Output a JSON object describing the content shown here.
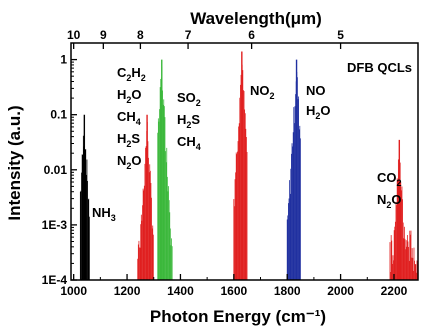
{
  "chart_data": {
    "type": "line",
    "title": "",
    "xlabel": "Photon Energy (cm⁻¹)",
    "ylabel": "Intensity (a.u.)",
    "top_axis_label": "Wavelength(μm)",
    "xlim": [
      990,
      2290
    ],
    "ylim": [
      0.0001,
      2
    ],
    "y_scale": "log",
    "grid": false,
    "x_ticks": [
      1000,
      1200,
      1400,
      1600,
      1800,
      2000,
      2200
    ],
    "x_tick_labels": [
      "1000",
      "1200",
      "1400",
      "1600",
      "1800",
      "2000",
      "2200"
    ],
    "y_ticks": [
      0.0001,
      0.001,
      0.01,
      0.1,
      1
    ],
    "y_tick_labels": [
      "1E-4",
      "1E-3",
      "0.01",
      "0.1",
      "1"
    ],
    "top_ticks_um": [
      10,
      9,
      8,
      7,
      6,
      5
    ],
    "top_tick_labels": [
      "10",
      "9",
      "8",
      "7",
      "6",
      "5"
    ],
    "corner_label": "DFB QCLs",
    "series": [
      {
        "color": "#000000",
        "peak_x": 1040,
        "peak_y": 0.1,
        "x_range": [
          1025,
          1060
        ]
      },
      {
        "color": "#e02020",
        "peak_x": 1275,
        "peak_y": 0.1,
        "x_range": [
          1240,
          1300
        ]
      },
      {
        "color": "#3cb83c",
        "peak_x": 1330,
        "peak_y": 1.0,
        "x_range": [
          1315,
          1370
        ]
      },
      {
        "color": "#e02020",
        "peak_x": 1630,
        "peak_y": 1.4,
        "x_range": [
          1600,
          1650
        ]
      },
      {
        "color": "#2030a0",
        "peak_x": 1835,
        "peak_y": 1.0,
        "x_range": [
          1800,
          1850
        ]
      },
      {
        "color": "#e02020",
        "peak_x": 2220,
        "peak_y": 0.035,
        "x_range": [
          2185,
          2290
        ]
      }
    ],
    "annotations": [
      {
        "id": "nh3",
        "lines": [
          [
            "NH",
            "3"
          ]
        ]
      },
      {
        "id": "c2h2-group",
        "lines": [
          [
            "C",
            "2",
            "H",
            "2"
          ],
          [
            "H",
            "2",
            "O"
          ],
          [
            "CH",
            "4"
          ],
          [
            "H",
            "2",
            "S"
          ],
          [
            "N",
            "2",
            "O"
          ]
        ]
      },
      {
        "id": "so2-group",
        "lines": [
          [
            "SO",
            "2"
          ],
          [
            "H",
            "2",
            "S"
          ],
          [
            "CH",
            "4"
          ]
        ]
      },
      {
        "id": "no2",
        "lines": [
          [
            "NO",
            "2"
          ]
        ]
      },
      {
        "id": "no-group",
        "lines": [
          [
            "NO"
          ],
          [
            "H",
            "2",
            "O"
          ]
        ]
      },
      {
        "id": "co2-group",
        "lines": [
          [
            "CO",
            "2"
          ],
          [
            "N",
            "2",
            "O"
          ]
        ]
      }
    ]
  }
}
